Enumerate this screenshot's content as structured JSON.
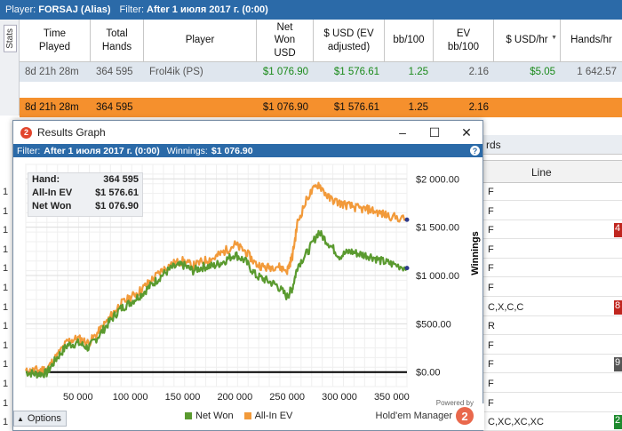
{
  "topbar": {
    "player_label": "Player:",
    "player": "FORSAJ (Alias)",
    "filter_label": "Filter:",
    "filter": "After 1 июля 2017 г. (0:00)"
  },
  "sidetab": {
    "label": "Stats"
  },
  "grid": {
    "columns": [
      "Time\nPlayed",
      "Total\nHands",
      "Player",
      "Net\nWon\nUSD",
      "$ USD (EV\nadjusted)",
      "bb/100",
      "EV\nbb/100",
      "$ USD/hr",
      "Hands/hr"
    ],
    "row1": [
      "8d 21h 28m",
      "364 595",
      "Frol4ik (PS)",
      "$1 076.90",
      "$1 576.61",
      "1.25",
      "2.16",
      "$5.05",
      "1 642.57"
    ],
    "row2": [
      "8d 21h 28m",
      "364 595",
      "",
      "$1 076.90",
      "$1 576.61",
      "1.25",
      "2.16"
    ]
  },
  "lower": {
    "tab_label": "rds",
    "line_header": "Line",
    "rows": [
      {
        "line": "F",
        "badge": "",
        "badge_color": ""
      },
      {
        "line": "F",
        "badge": "",
        "badge_color": ""
      },
      {
        "line": "F",
        "badge": "4",
        "badge_color": "#c0261f"
      },
      {
        "line": "F",
        "badge": "",
        "badge_color": ""
      },
      {
        "line": "F",
        "badge": "",
        "badge_color": ""
      },
      {
        "line": "F",
        "badge": "",
        "badge_color": ""
      },
      {
        "line": "C,X,C,C",
        "badge": "8",
        "badge_color": "#c0261f"
      },
      {
        "line": "R",
        "badge": "",
        "badge_color": ""
      },
      {
        "line": "F",
        "badge": "",
        "badge_color": ""
      },
      {
        "line": "F",
        "badge": "9",
        "badge_color": "#555555"
      },
      {
        "line": "F",
        "badge": "",
        "badge_color": ""
      },
      {
        "line": "F",
        "badge": "",
        "badge_color": ""
      },
      {
        "line": "C,XC,XC,XC",
        "badge": "2",
        "badge_color": "#1e8a2e"
      }
    ],
    "left_markers": [
      "1",
      "1",
      "1",
      "1",
      "1",
      "1",
      "1",
      "1",
      "1",
      "1",
      "1",
      "1",
      "1",
      "1"
    ]
  },
  "dialog": {
    "title": "Results Graph",
    "logo": "2",
    "filter_label": "Filter:",
    "filter": "After 1 июля 2017 г. (0:00)",
    "winnings_label": "Winnings:",
    "winnings": "$1 076.90",
    "help": "?",
    "info": [
      {
        "label": "Hand:",
        "value": "364 595"
      },
      {
        "label": "All-In EV",
        "value": "$1 576.61"
      },
      {
        "label": "Net Won",
        "value": "$1 076.90"
      }
    ],
    "options_label": "Options",
    "powered_by": "Powered by",
    "brand": "Hold'em Manager",
    "brand_logo": "2"
  },
  "colors": {
    "netwon": "#5a9a2f",
    "allinev": "#f29a3a",
    "accent": "#2b6aa8",
    "highlight": "#f5902d"
  },
  "chart_data": {
    "type": "line",
    "xlabel": "Hands",
    "ylabel": "Winnings",
    "xlim": [
      0,
      364595
    ],
    "ylim": [
      -150,
      2150
    ],
    "x_ticks": [
      "50 000",
      "100 000",
      "150 000",
      "200 000",
      "250 000",
      "300 000",
      "350 000"
    ],
    "x_tick_values": [
      50000,
      100000,
      150000,
      200000,
      250000,
      300000,
      350000
    ],
    "y_ticks": [
      "$0.00",
      "$500.00",
      "$1 000.00",
      "$1 500.00",
      "$2 000.00"
    ],
    "y_tick_values": [
      0,
      500,
      1000,
      1500,
      2000
    ],
    "x": [
      0,
      10000,
      20000,
      30000,
      40000,
      50000,
      60000,
      70000,
      80000,
      90000,
      100000,
      110000,
      120000,
      130000,
      140000,
      150000,
      160000,
      170000,
      180000,
      190000,
      200000,
      210000,
      220000,
      230000,
      240000,
      250000,
      255000,
      260000,
      270000,
      280000,
      290000,
      300000,
      310000,
      320000,
      330000,
      340000,
      350000,
      364595
    ],
    "series": [
      {
        "name": "Net Won",
        "values": [
          0,
          -20,
          -10,
          150,
          280,
          300,
          250,
          380,
          520,
          650,
          720,
          800,
          900,
          1000,
          1080,
          1110,
          1050,
          1090,
          1100,
          1150,
          1220,
          1150,
          1000,
          950,
          900,
          780,
          870,
          1100,
          1250,
          1450,
          1330,
          1200,
          1250,
          1220,
          1200,
          1150,
          1120,
          1077
        ]
      },
      {
        "name": "All-In EV",
        "values": [
          0,
          20,
          30,
          170,
          320,
          350,
          300,
          420,
          560,
          700,
          770,
          850,
          950,
          1050,
          1120,
          1150,
          1100,
          1150,
          1180,
          1250,
          1320,
          1250,
          1120,
          1080,
          1100,
          1050,
          1200,
          1550,
          1820,
          1950,
          1800,
          1750,
          1720,
          1690,
          1680,
          1640,
          1610,
          1577
        ]
      }
    ],
    "grid": true,
    "legend": "bottom"
  }
}
